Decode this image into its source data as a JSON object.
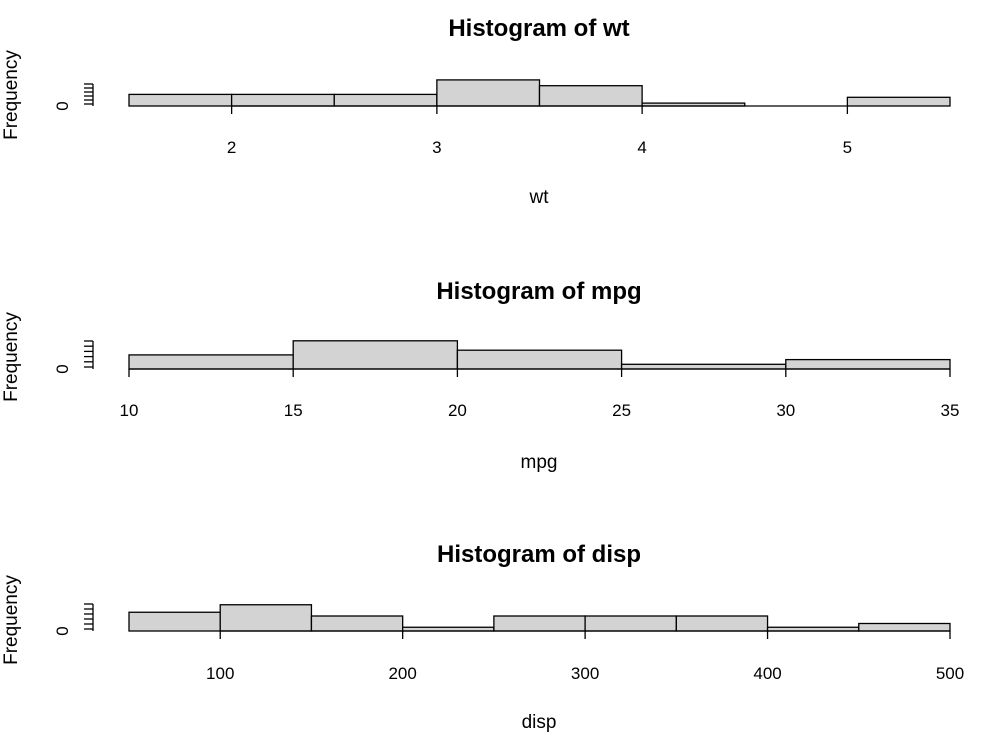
{
  "chart_data": [
    {
      "type": "bar",
      "subtype": "histogram",
      "title": "Histogram of wt",
      "xlabel": "wt",
      "ylabel": "Frequency",
      "breaks": [
        1.5,
        2.0,
        2.5,
        3.0,
        3.5,
        4.0,
        4.5,
        5.0,
        5.5
      ],
      "counts": [
        4,
        4,
        4,
        9,
        7,
        1,
        0,
        3
      ],
      "xticks": [
        2,
        3,
        4,
        5
      ],
      "xtick_labels": [
        "2",
        "3",
        "4",
        "5"
      ],
      "xlim": [
        1.5,
        5.5
      ],
      "ylim": [
        0,
        9
      ],
      "ytick_label": "0",
      "bar_color": "#d3d3d3",
      "grid": false
    },
    {
      "type": "bar",
      "subtype": "histogram",
      "title": "Histogram of mpg",
      "xlabel": "mpg",
      "ylabel": "Frequency",
      "breaks": [
        10,
        15,
        20,
        25,
        30,
        35
      ],
      "counts": [
        6,
        12,
        8,
        2,
        4
      ],
      "xticks": [
        10,
        15,
        20,
        25,
        30,
        35
      ],
      "xtick_labels": [
        "10",
        "15",
        "20",
        "25",
        "30",
        "35"
      ],
      "xlim": [
        10,
        35
      ],
      "ylim": [
        0,
        12
      ],
      "ytick_label": "0",
      "bar_color": "#d3d3d3",
      "grid": false
    },
    {
      "type": "bar",
      "subtype": "histogram",
      "title": "Histogram of disp",
      "xlabel": "disp",
      "ylabel": "Frequency",
      "breaks": [
        50,
        100,
        150,
        200,
        250,
        300,
        350,
        400,
        450,
        500
      ],
      "counts": [
        5,
        7,
        4,
        1,
        4,
        4,
        4,
        1,
        2
      ],
      "xticks": [
        100,
        200,
        300,
        400,
        500
      ],
      "xtick_labels": [
        "100",
        "200",
        "300",
        "400",
        "500"
      ],
      "xlim": [
        50,
        500
      ],
      "ylim": [
        0,
        7
      ],
      "ytick_label": "0",
      "bar_color": "#d3d3d3",
      "grid": false
    }
  ]
}
